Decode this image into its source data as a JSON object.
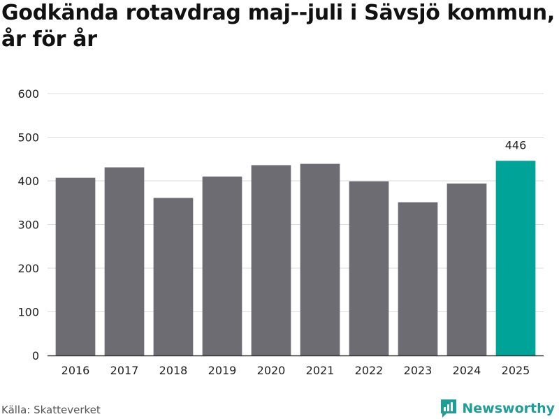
{
  "title": "Godkända rotavdrag maj--juli i Sävsjö kommun, år för år",
  "source": "Källa: Skatteverket",
  "brand": "Newsworthy",
  "colors": {
    "bar": "#6d6c72",
    "highlight": "#00a398",
    "grid": "#dddddd",
    "axis": "#333333",
    "tick_text": "#222222",
    "brand": "#1f9e97"
  },
  "chart_data": {
    "type": "bar",
    "title": "Godkända rotavdrag maj--juli i Sävsjö kommun, år för år",
    "xlabel": "",
    "ylabel": "",
    "categories": [
      "2016",
      "2017",
      "2018",
      "2019",
      "2020",
      "2021",
      "2022",
      "2023",
      "2024",
      "2025"
    ],
    "values": [
      407,
      431,
      361,
      410,
      436,
      439,
      399,
      351,
      394,
      446
    ],
    "highlight_index": 9,
    "data_labels": [
      {
        "index": 9,
        "text": "446"
      }
    ],
    "ylim": [
      0,
      600
    ],
    "yticks": [
      0,
      100,
      200,
      300,
      400,
      500,
      600
    ],
    "grid": true,
    "legend": "none"
  }
}
